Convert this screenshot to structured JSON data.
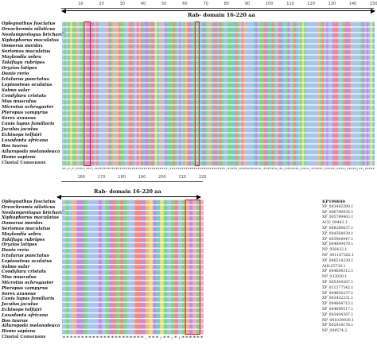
{
  "colors": {
    "hydrophobic": "#a7c4ec",
    "positive": "#f08a8a",
    "negative": "#c58be3",
    "polar": "#7ed685",
    "glycine": "#f2b582",
    "proline": "#e8e07a",
    "aromatic": "#6ecdd1",
    "cysteine": "#f4a9c8",
    "box": "#e01010"
  },
  "top_panel": {
    "ruler_ticks": [
      "10",
      "20",
      "30",
      "40",
      "50",
      "60",
      "70",
      "80",
      "90",
      "100",
      "110",
      "120",
      "130",
      "140",
      "150"
    ],
    "domain_label": "Rab- domain 16-220 aa",
    "species": [
      "Oplegnathus fasciatus",
      "Oreochromis niloticus",
      "Neolamprologus brichardi",
      "Xiphophorus maculatus",
      "Oomerus mordax",
      "Seriomas maculatus",
      "Maylandia sebra",
      "Takifugu rubripes",
      "Oryzias latipes",
      "Danio rerio",
      "Ictalurus punctatus",
      "Lepisosteus oculatus",
      "Salmo salar",
      "Condylura cristata",
      "Mus musculus",
      "Microtus ochrogaster",
      "Pteropus vampyrus",
      "Sorex araneus",
      "Canis lupus familiaris",
      "Jaculus jaculus",
      "Echinops telfairi",
      "Loxodonta africana",
      "Bos taurus",
      "Ailuropoda melanoleuca",
      "Homo sapiens",
      "Clustal Consensus"
    ],
    "sequences": [
      "MSASPSTGMNSAKEEKIRAVLVGDSGVGKSSLIHRFCEGRFEEQHDPTLGIDFSSKTLEVNGREYSLQIWDTAGQERFRSIAQSYYRSAHGVLLVYDVTNRDSFRNVREWLTEIQRYASPNAVLMLVGNKIDLAERRAVSRDEGLALAQELEIPF",
      "MSASPSTGMNSAKEEKIRAVLVGDSGVGKSSLIHRFCEGRFEEQHDPTLGIDFSSKTLEVNGREYSLQIWDTAGQERFRSIAQSYYRSAHGVLLVYDVTNRDSFRNVREWLTEIQRYASPNAVLMLVGNKIDLAERRAVSRDEGLALAQELEIPF",
      "MSASPSTGMNSAKEEKIRAVLVGDSGVGKSSLIHRFCEGRFEEQHDPTLGIDFSSKTLEVNGREYSLQIWDTAGQERFRSIAQSYYRSAHGVLLVYDVTNRDSFRNVREWLTEIQRYASPNAVLMLVGNKIDLAERRAVSRDEGLALAQELEIPF",
      "MSASPSTGMNSAKEEKIRAVLVGDSGVGKSSLIHRFCEGRFEEQHDPTLGIDFSSKTLEVNGREYSLQIWDTAGQERFRSIAQSYYRSAHGVLLVYDVTNRDSFRNVREWLTEIQRYASPNAVLMLVGNKIDLAERRAVSRDEGLALAQELEIPF",
      "MSASPSTGMNSAKEEKIRAVLVGDSGVGKSSLIHRFCEGRFEEQHDPTLGIDFSSKTLEVNGREYSLQIWDTAGQERFRSIAQSYYRSAHGVLLVYDVTNRDSFRNVREWLTEIQRYASPNAVLMLVGNKIDLAERRAVSRDEGLALAQELEIPF",
      "MSASPSTGMNSAKEEKIRAVLVGDSGVGKSSLIHRFCEGRFEEQHDPTLGIDFSSKTLEVNGREYSLQIWDTAGQERFRSIAQSYYRSAHGVLLVYDVTNRDSFRNVREWLTEIQRYASPNAVLMLVGNKIDLAERRAVSRDEGLALAQELEIPF",
      "MSASPSTGMNSAKEEKIRAVLVGDSGVGKSSLIHRFCEGRFEEQHDPTLGIDFSSKTLEVNGREYSLQIWDTAGQERFRSIAQSYYRSAHGVLLVYDVTNRDSFRNVREWLTEIQRYASPNAVLMLVGNKIDLAERRAVSRDEGLALAQELEIPF",
      "MSASPSTGMNSAKEEKIRAVLVGDSGVGKSSLIHRFCEGRFEEQHDPTLGIDFSSKTLEVNGREYSLQIWDTAGQERFRSIAQSYYRSAHGVLLVYDVTNRDSFRNVREWLTEIQRYASPNAVLMLVGNKIDLAERRAVSRDEGLALAQELEIPF",
      "MSASPSTGMNSAKEEKIRAVLVGDSGVGKSSLIHRFCEGRFEEQHDPTLGIDFSSKTLEVNGREYSLQIWDTAGQERFRSIAQSYYRSAHGVLLVYDVTNRDSFRNVREWLTEIQRYASPNAVLMLVGNKIDLAERRAVSRDEGLALAQELEIPF",
      "MSASPSTGMNSAKEEKIRAVLVGDSGVGKSSLIHRFCEGRFEEQHDPTLGIDFSSKTLEVNGREYSLQIWDTAGQERFRSIAQSYYRSAHGVLLVYDVTNRDSFRNVREWLTEIQRYASPNAVLMLVGNKIDLAERRAVSRDEGLALAQELEIPF",
      "MSASPSTGMNSAKEEKIRAVLVGDSGVGKSSLIHRFCEGRFEEQHDPTLGIDFSSKTLEVNGREYSLQIWDTAGQERFRSIAQSYYRSAHGVLLVYDVTNRDSFRNVREWLTEIQRYASPNAVLMLVGNKIDLAERRAVSRDEGLALAQELEIPF",
      "MSASPSTGMNSAKEEKIRAVLVGDSGVGKSSLIHRFCEGRFEEQHDPTLGIDFSSKTLEVNGREYSLQIWDTAGQERFRSIAQSYYRSAHGVLLVYDVTNRDSFRNVREWLTEIQRYASPNAVLMLVGNKIDLAERRAVSRDEGLALAQELEIPF",
      "MSASPSTGMNSAKEEKIRAVLVGDSGVGKSSLIHRFCEGRFEEQHDPTLGIDFSSKTLEVNGREYSLQIWDTAGQERFRSIAQSYYRSAHGVLLVYDVTNRDSFRNVREWLTEIQRYASPNAVLMLVGNKIDLAERRAVSRDEGLALAQELEIPF",
      "MSASPSTGMNSAKEEKIRAVLVGDSGVGKSSLIHRFCEGRFEEQHDPTLGIDFSSKTLEVNGREYSLQIWDTAGQERFRSIAQSYYRSAHGVLLVYDVTNRDSFRNVREWLTEIQRYASPNAVLMLVGNKIDLAERRAVSRDEGLALAQELEIPF",
      "MSASPSTGMNSAKEEKIRAVLVGDSGVGKSSLIHRFCEGRFEEQHDPTLGIDFSSKTLEVNGREYSLQIWDTAGQERFRSIAQSYYRSAHGVLLVYDVTNRDSFRNVREWLTEIQRYASPNAVLMLVGNKIDLAERRAVSRDEGLALAQELEIPF",
      "MSASPSTGMNSAKEEKIRAVLVGDSGVGKSSLIHRFCEGRFEEQHDPTLGIDFSSKTLEVNGREYSLQIWDTAGQERFRSIAQSYYRSAHGVLLVYDVTNRDSFRNVREWLTEIQRYASPNAVLMLVGNKIDLAERRAVSRDEGLALAQELEIPF",
      "MSASPSTGMNSAKEEKIRAVLVGDSGVGKSSLIHRFCEGRFEEQHDPTLGIDFSSKTLEVNGREYSLQIWDTAGQERFRSIAQSYYRSAHGVLLVYDVTNRDSFRNVREWLTEIQRYASPNAVLMLVGNKIDLAERRAVSRDEGLALAQELEIPF",
      "MSASPSTGMNSAKEEKIRAVLVGDSGVGKSSLIHRFCEGRFEEQHDPTLGIDFSSKTLEVNGREYSLQIWDTAGQERFRSIAQSYYRSAHGVLLVYDVTNRDSFRNVREWLTEIQRYASPNAVLMLVGNKIDLAERRAVSRDEGLALAQELEIPF",
      "MSASPSTGMNSAKEEKIRAVLVGDSGVGKSSLIHRFCEGRFEEQHDPTLGIDFSSKTLEVNGREYSLQIWDTAGQERFRSIAQSYYRSAHGVLLVYDVTNRDSFRNVREWLTEIQRYASPNAVLMLVGNKIDLAERRAVSRDEGLALAQELEIPF",
      "MSASPSTGMNSAKEEKIRAVLVGDSGVGKSSLIHRFCEGRFEEQHDPTLGIDFSSKTLEVNGREYSLQIWDTAGQERFRSIAQSYYRSAHGVLLVYDVTNRDSFRNVREWLTEIQRYASPNAVLMLVGNKIDLAERRAVSRDEGLALAQELEIPF",
      "MSASPSTGMNSAKEEKIRAVLVGDSGVGKSSLIHRFCEGRFEEQHDPTLGIDFSSKTLEVNGREYSLQIWDTAGQERFRSIAQSYYRSAHGVLLVYDVTNRDSFRNVREWLTEIQRYASPNAVLMLVGNKIDLAERRAVSRDEGLALAQELEIPF",
      "MSASPSTGMNSAKEEKIRAVLVGDSGVGKSSLIHRFCEGRFEEQHDPTLGIDFSSKTLEVNGREYSLQIWDTAGQERFRSIAQSYYRSAHGVLLVYDVTNRDSFRNVREWLTEIQRYASPNAVLMLVGNKIDLAERRAVSRDEGLALAQELEIPF",
      "MSASPSTGMNSAKEEKIRAVLVGDSGVGKSSLIHRFCEGRFEEQHDPTLGIDFSSKTLEVNGREYSLQIWDTAGQERFRSIAQSYYRSAHGVLLVYDVTNRDSFRNVREWLTEIQRYASPNAVLMLVGNKIDLAERRAVSRDEGLALAQELEIPF",
      "MSASPSTGMNSAKEEKIRAVLVGDSGVGKSSLIHRFCEGRFEEQHDPTLGIDFSSKTLEVNGREYSLQIWDTAGQERFRSIAQSYYRSAHGVLLVYDVTNRDSFRNVREWLTEIQRYASPNAVLMLVGNKIDLAERRAVSRDEGLALAQELEIPF",
      "MSASPSTGMNSAKEEKIRAVLVGDSGVGKSSLIHRFCEGRFEEQHDPTLGIDFSSKTLEVNGREYSLQIWDTAGQERFRSIAQSYYRSAHGVLLVYDVTNRDSFRNVREWLTEIQRYASPNAVLMLVGNKIDLAERRAVSRDEGLALAQELEIPF",
      "MSASPSTGMNSAKEEKIRAVLVGDSGVGKSSLIHRFCEGRFEEQHDPTLGIDFSSKTLEVNGREYSLQIWDTAGQERFRSIAQSYYRSAHGVLLVYDVTNRDSFRNVREWLTEIQRYASPNAVLMLVGNKIDLAERRAVSRDEGLALAQELEIPF"
    ],
    "consensus": "**:*:*:****:***:*************************************:****************************:*****:***********:*******:**:*******:****:******:*****:****:*****:**:*****"
  },
  "bottom_panel": {
    "ruler_ticks": [
      "160",
      "170",
      "180",
      "190",
      "200",
      "210",
      "220"
    ],
    "domain_label": "Rab- domain 16-220 aa",
    "species": [
      "Oplegnathus fasciatus",
      "Oreochromis niloticus",
      "Neolamprologus brichardi",
      "Xiphophorus maculatus",
      "Oomerus mordax",
      "Seriomas maculatus",
      "Maylandia sebra",
      "Takifugu rubripes",
      "Oryzias latipes",
      "Danio rerio",
      "Ictalurus punctatus",
      "Lepisosteus oculatus",
      "Salmo salar",
      "Condylura cristata",
      "Mus musculus",
      "Microtus ochrogaster",
      "Pteropus vampyrus",
      "Sorex araneus",
      "Canis lupus familiaris",
      "Jaculus jaculus",
      "Echinops telfairi",
      "Loxodonta africana",
      "Bos taurus",
      "Ailuropoda melanoleuca",
      "Homo sapiens",
      "Clustal Consensus"
    ],
    "accessions": [
      "KP190840",
      "XP_003442280.1",
      "XP_006796935.1",
      "XP_005799463.1",
      "ACO_09442.1",
      "XP_008286637.1",
      "XP_004564930.1",
      "XP_003964947.1",
      "XP_004069479.1",
      "NP_956432.1",
      "NP_001187282.1",
      "XP_006514330.1",
      "AHL25730.1",
      "XP_004684312.1",
      "NP_033028.1",
      "XP_005364287.1",
      "XP_011377542.1",
      "XP_004604237.1",
      "XP_003432231.1",
      "XP_004664713.1",
      "XP_004696517.1",
      "XP_003404397.1",
      "NP_001039920.1",
      "XP_002924178.1",
      "NP_004574.2"
    ],
    "sequences": [
      "AQAGDENLLLEMSEKTRSAVKKEGPEFPNAQKANGDCSC",
      "AQAGDENLLLEMSEKTRSAVKKEGPEFPNAQKANGDCSC",
      "AQAGDENLLLEMSEKTRSAVKKEGPEFPNAQKANGDCSC",
      "AQAGDENLLLEMSEKTRSAVKKEGPEFPNAQKANGDCSC",
      "AQAGDENLLLEMSEKTRSAVKKEGPEFPNAQKANGDCSC",
      "AQAGDENLLLEMSEKTRSAVKKEGPEFPNAQKANGDCSC",
      "AQAGDENLLLEMSEKTRSAVKKEGPEFPNAQKANGDCSC",
      "AQAGDENLLLEMSEKTRSAVKKEGPEFPNAQKANGDCSC",
      "AQAGDENLLLEMSEKTRSAVKKEGPEFPNAQKANGDCSC",
      "AQAGDENLLLEMSEKTRSAVKKEGPEFPNAQKANGDCSC",
      "AQAGDENLLLEMSEKTRSAVKKEGPEFPNAQKANGDCSC",
      "AQAGDENLLLEMSEKTRSAVKKEGPEFPNAQKANGDCSC",
      "AQAGDENLLLEMSEKTRSAVKKEGPEFPNAQKANGDCSC",
      "AQAGDENLLLEMSEKTRSAVKKEGPEFPNAQKANGDCSC",
      "AQAGDENLLLEMSEKTRSAVKKEGPEFPNAQKANGDCSC",
      "AQAGDENLLLEMSEKTRSAVKKEGPEFPNAQKANGDCSC",
      "AQAGDENLLLEMSEKTRSAVKKEGPEFPNAQKANGDCSC",
      "AQAGDENLLLEMSEKTRSAVKKEGPEFPNAQKANGDCSC",
      "AQAGDENLLLEMSEKTRSAVKKEGPEFPNAQKANGDCSC",
      "AQAGDENLLLEMSEKTRSAVKKEGPEFPNAQKANGDCSC",
      "AQAGDENLLLEMSEKTRSAVKKEGPEFPNAQKANGDCSC",
      "AQAGDENLLLEMSEKTRSAVKKEGPEFPNAQKANGDCSC",
      "AQAGDENLLLEMSEKTRSAVKKEGPEFPNAQKANGDCSC",
      "AQAGDENLLLEMSEKTRSAVKKEGPEFPNAQKANGDCSC",
      "AQAGDENLLLEMSEKTRSAVKKEGPEFPNAQKANGDCSC"
    ],
    "consensus": "**********************.***:**:*:******"
  }
}
